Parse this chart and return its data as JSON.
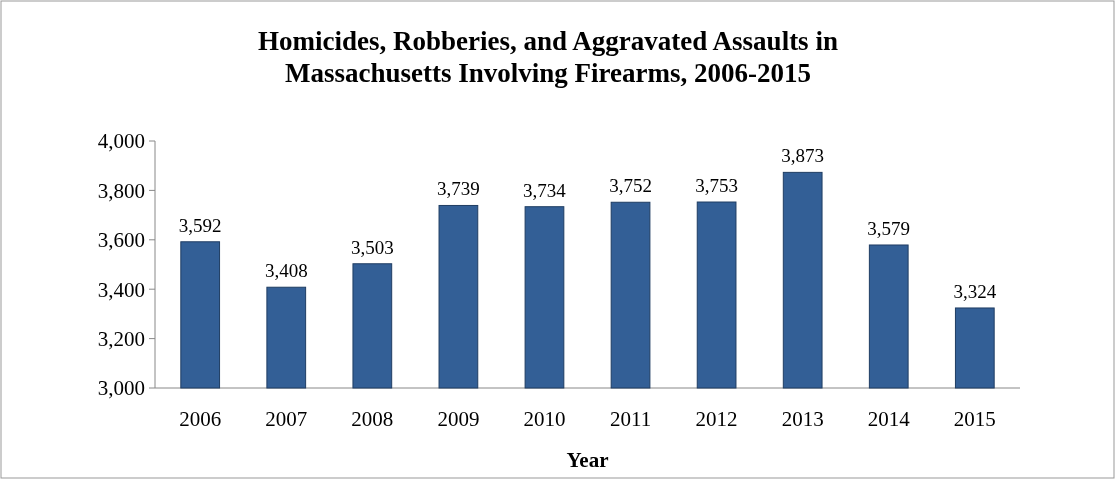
{
  "chart_data": {
    "type": "bar",
    "title": "Homicides, Robberies, and Aggravated Assaults in Massachusetts Involving Firearms, 2006-2015",
    "xlabel": "Year",
    "categories": [
      "2006",
      "2007",
      "2008",
      "2009",
      "2010",
      "2011",
      "2012",
      "2013",
      "2014",
      "2015"
    ],
    "values": [
      3592,
      3408,
      3503,
      3739,
      3734,
      3752,
      3753,
      3873,
      3579,
      3324
    ],
    "value_labels": [
      "3,592",
      "3,408",
      "3,503",
      "3,739",
      "3,734",
      "3,752",
      "3,753",
      "3,873",
      "3,579",
      "3,324"
    ],
    "color": "#335f96",
    "ylim": [
      3000,
      4000
    ],
    "yticks": [
      {
        "value": 3000,
        "label": "3,000"
      },
      {
        "value": 3200,
        "label": "3,200"
      },
      {
        "value": 3400,
        "label": "3,400"
      },
      {
        "value": 3600,
        "label": "3,600"
      },
      {
        "value": 3800,
        "label": "3,800"
      },
      {
        "value": 4000,
        "label": "4,000"
      }
    ],
    "grid": false
  }
}
